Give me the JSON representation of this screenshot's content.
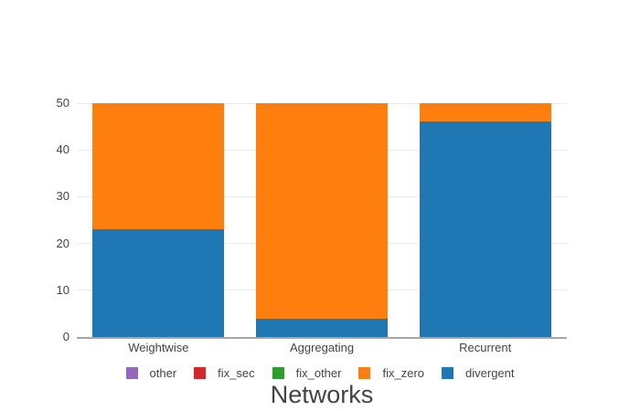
{
  "chart_data": {
    "type": "bar",
    "stacked": true,
    "title": "",
    "xlabel": "Networks",
    "ylabel": "",
    "categories": [
      "Weightwise",
      "Aggregating",
      "Recurrent"
    ],
    "series": [
      {
        "name": "other",
        "color": "#9467bd",
        "values": [
          0,
          0,
          0
        ]
      },
      {
        "name": "fix_sec",
        "color": "#d62728",
        "values": [
          0,
          0,
          0
        ]
      },
      {
        "name": "fix_other",
        "color": "#2ca02c",
        "values": [
          0,
          0,
          0
        ]
      },
      {
        "name": "fix_zero",
        "color": "#ff7f0e",
        "values": [
          27,
          46,
          4
        ]
      },
      {
        "name": "divergent",
        "color": "#1f77b4",
        "values": [
          23,
          4,
          46
        ]
      }
    ],
    "stack_order_bottom_to_top": [
      "divergent",
      "fix_zero",
      "fix_other",
      "fix_sec",
      "other"
    ],
    "legend": {
      "position": "bottom",
      "entries": [
        "other",
        "fix_sec",
        "fix_other",
        "fix_zero",
        "divergent"
      ]
    },
    "ylim": [
      0,
      50
    ],
    "yticks": [
      0,
      10,
      20,
      30,
      40,
      50
    ],
    "grid": true,
    "colors": {
      "axis_line": "#a6a6a6",
      "gridline": "#ebebeb",
      "text": "#444444",
      "background": "#ffffff"
    }
  }
}
